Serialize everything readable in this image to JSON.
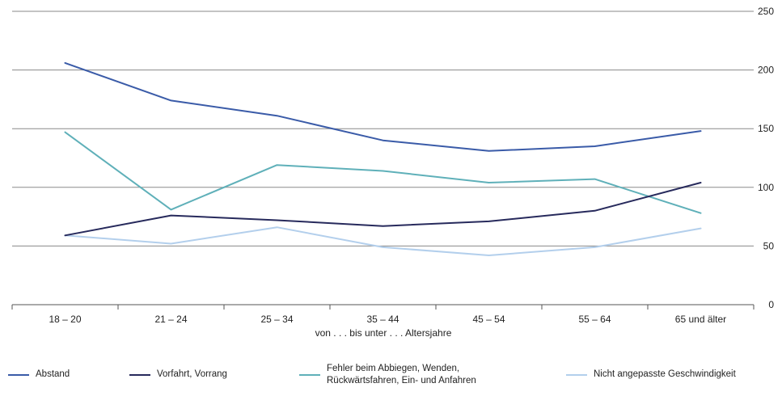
{
  "chart_data": {
    "type": "line",
    "categories": [
      "18 – 20",
      "21 – 24",
      "25 – 34",
      "35 – 44",
      "45 – 54",
      "55 – 64",
      "65 und älter"
    ],
    "series": [
      {
        "name": "Abstand",
        "values": [
          206,
          174,
          161,
          140,
          131,
          135,
          148
        ],
        "color": "#3a5ba8"
      },
      {
        "name": "Vorfahrt, Vorrang",
        "values": [
          59,
          76,
          72,
          67,
          71,
          80,
          104
        ],
        "color": "#272a5c"
      },
      {
        "name": "Fehler beim Abbiegen, Wenden,\nRückwärtsfahren, Ein- und Anfahren",
        "values": [
          147,
          81,
          119,
          114,
          104,
          107,
          78
        ],
        "color": "#5fb0b9"
      },
      {
        "name": "Nicht angepasste Geschwindigkeit",
        "values": [
          59,
          52,
          66,
          49,
          42,
          49,
          65
        ],
        "color": "#b3cfec"
      }
    ],
    "title": "",
    "xlabel": "von . . . bis unter . . . Altersjahre",
    "ylabel": "",
    "ylim": [
      0,
      250
    ],
    "yticks": [
      0,
      50,
      100,
      150,
      200,
      250
    ],
    "grid": true,
    "legend": "bottom"
  }
}
